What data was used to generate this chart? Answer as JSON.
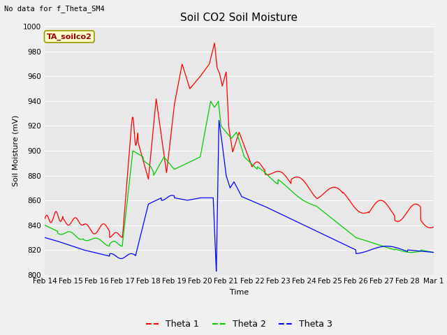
{
  "title": "Soil CO2 Soil Moisture",
  "xlabel": "Time",
  "ylabel": "Soil Moisture (mV)",
  "ylim": [
    800,
    1000
  ],
  "yticks": [
    800,
    820,
    840,
    860,
    880,
    900,
    920,
    940,
    960,
    980,
    1000
  ],
  "note": "No data for f_Theta_SM4",
  "box_label": "TA_soilco2",
  "legend_labels": [
    "Theta 1",
    "Theta 2",
    "Theta 3"
  ],
  "colors": {
    "theta1": "#ff0000",
    "theta2": "#00cc00",
    "theta3": "#0000ff"
  },
  "fig_bg": "#f0f0f0",
  "plot_bg": "#e8e8e8",
  "x_tick_labels": [
    "Feb 14",
    "Feb 15",
    "Feb 16",
    "Feb 17",
    "Feb 18",
    "Feb 19",
    "Feb 20",
    "Feb 21",
    "Feb 22",
    "Feb 23",
    "Feb 24",
    "Feb 25",
    "Feb 26",
    "Feb 27",
    "Feb 28",
    "Mar 1"
  ]
}
